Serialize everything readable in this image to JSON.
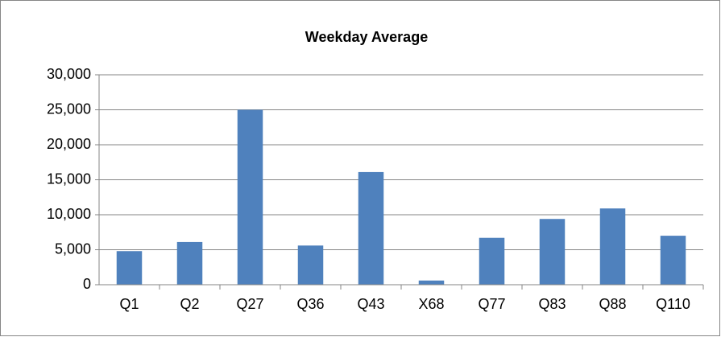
{
  "chart_data": {
    "type": "bar",
    "title": "Weekday Average",
    "categories": [
      "Q1",
      "Q2",
      "Q27",
      "Q36",
      "Q43",
      "X68",
      "Q77",
      "Q83",
      "Q88",
      "Q110"
    ],
    "values": [
      4800,
      6100,
      25000,
      5600,
      16100,
      600,
      6700,
      9400,
      10900,
      7000
    ],
    "color": "#4f81bd",
    "ylim": [
      0,
      30000
    ],
    "yticks": [
      0,
      {
        "value": 5000,
        "label": "5,000"
      },
      {
        "value": 10000,
        "label": "10,000"
      },
      {
        "value": 15000,
        "label": "15,000"
      },
      {
        "value": 20000,
        "label": "20,000"
      },
      {
        "value": 25000,
        "label": "25,000"
      },
      {
        "value": 30000,
        "label": "30,000"
      }
    ],
    "grid": true
  }
}
